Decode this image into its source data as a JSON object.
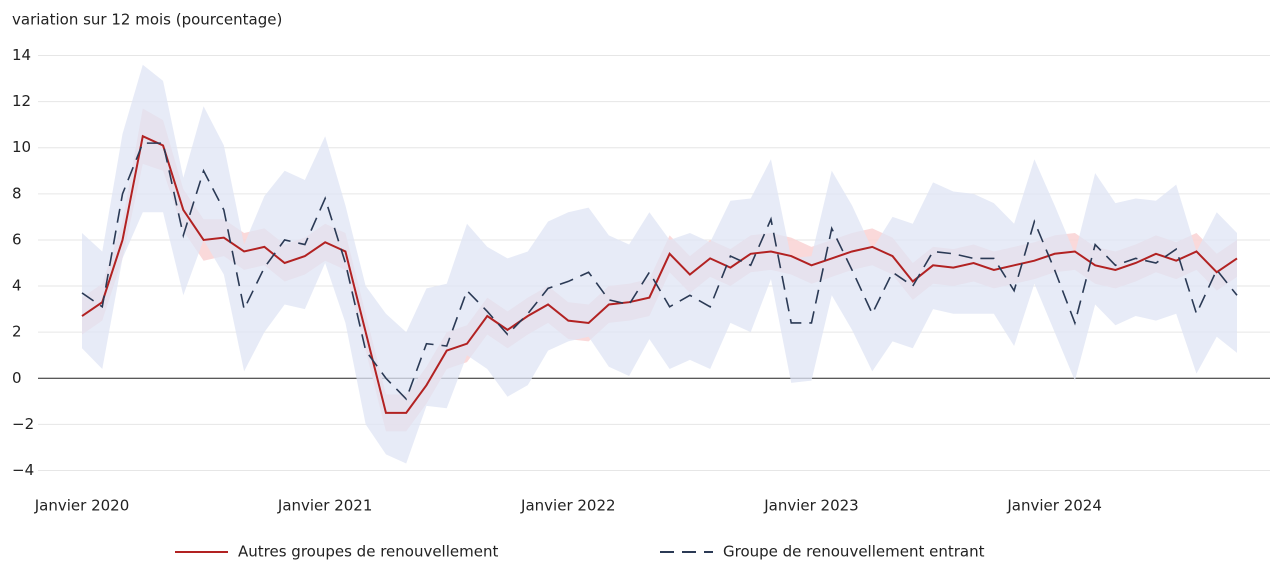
{
  "chart_data": {
    "type": "line",
    "y_label": "variation sur 12 mois (pourcentage)",
    "x": [
      "2020-01",
      "2020-02",
      "2020-03",
      "2020-04",
      "2020-05",
      "2020-06",
      "2020-07",
      "2020-08",
      "2020-09",
      "2020-10",
      "2020-11",
      "2020-12",
      "2021-01",
      "2021-02",
      "2021-03",
      "2021-04",
      "2021-05",
      "2021-06",
      "2021-07",
      "2021-08",
      "2021-09",
      "2021-10",
      "2021-11",
      "2021-12",
      "2022-01",
      "2022-02",
      "2022-03",
      "2022-04",
      "2022-05",
      "2022-06",
      "2022-07",
      "2022-08",
      "2022-09",
      "2022-10",
      "2022-11",
      "2022-12",
      "2023-01",
      "2023-02",
      "2023-03",
      "2023-04",
      "2023-05",
      "2023-06",
      "2023-07",
      "2023-08",
      "2023-09",
      "2023-10",
      "2023-11",
      "2023-12",
      "2024-01",
      "2024-02",
      "2024-03",
      "2024-04",
      "2024-05",
      "2024-06",
      "2024-07",
      "2024-08",
      "2024-09",
      "2024-10"
    ],
    "xticks": [
      {
        "value": "2020-01",
        "label": "Janvier 2020"
      },
      {
        "value": "2021-01",
        "label": "Janvier 2021"
      },
      {
        "value": "2022-01",
        "label": "Janvier 2022"
      },
      {
        "value": "2023-01",
        "label": "Janvier 2023"
      },
      {
        "value": "2024-01",
        "label": "Janvier 2024"
      }
    ],
    "ylim": [
      -4.5,
      14.5
    ],
    "yticks": [
      {
        "value": -4,
        "label": "−4"
      },
      {
        "value": -2,
        "label": "−2"
      },
      0,
      2,
      4,
      6,
      8,
      10,
      12,
      14
    ],
    "grid": true,
    "series": [
      {
        "name": "Autres groupes de renouvellement",
        "color": "#b22222",
        "dash": false,
        "band_color": "#f9d2d4",
        "values": [
          2.7,
          3.3,
          6.0,
          10.5,
          10.1,
          7.3,
          6.0,
          6.1,
          5.5,
          5.7,
          5.0,
          5.3,
          5.9,
          5.5,
          2.0,
          -1.5,
          -1.5,
          -0.3,
          1.2,
          1.5,
          2.7,
          2.1,
          2.7,
          3.2,
          2.5,
          2.4,
          3.2,
          3.3,
          3.5,
          5.4,
          4.5,
          5.2,
          4.8,
          5.4,
          5.5,
          5.3,
          4.9,
          5.2,
          5.5,
          5.7,
          5.3,
          4.2,
          4.9,
          4.8,
          5.0,
          4.7,
          4.9,
          5.1,
          5.4,
          5.5,
          4.9,
          4.7,
          5.0,
          5.4,
          5.1,
          5.5,
          4.6,
          5.2
        ],
        "upper": [
          3.5,
          4.1,
          6.8,
          11.7,
          11.2,
          8.2,
          6.9,
          6.9,
          6.3,
          6.5,
          5.8,
          6.1,
          6.7,
          6.3,
          2.8,
          -0.7,
          -0.7,
          0.5,
          2.0,
          2.3,
          3.5,
          2.9,
          3.5,
          4.0,
          3.3,
          3.2,
          4.0,
          4.1,
          4.3,
          6.2,
          5.3,
          6.0,
          5.6,
          6.2,
          6.3,
          6.1,
          5.7,
          6.0,
          6.3,
          6.5,
          6.1,
          5.0,
          5.7,
          5.6,
          5.8,
          5.5,
          5.7,
          5.9,
          6.2,
          6.3,
          5.7,
          5.5,
          5.8,
          6.2,
          5.9,
          6.3,
          5.4,
          6.0
        ],
        "lower": [
          1.9,
          2.5,
          5.2,
          9.3,
          9.0,
          6.4,
          5.1,
          5.3,
          4.7,
          4.9,
          4.2,
          4.5,
          5.1,
          4.7,
          1.2,
          -2.3,
          -2.3,
          -1.1,
          0.4,
          0.7,
          1.9,
          1.3,
          1.9,
          2.4,
          1.7,
          1.6,
          2.4,
          2.5,
          2.7,
          4.6,
          3.7,
          4.4,
          4.0,
          4.6,
          4.7,
          4.5,
          4.1,
          4.4,
          4.7,
          4.9,
          4.5,
          3.4,
          4.1,
          4.0,
          4.2,
          3.9,
          4.1,
          4.3,
          4.6,
          4.7,
          4.1,
          3.9,
          4.2,
          4.6,
          4.3,
          4.7,
          3.8,
          4.4
        ]
      },
      {
        "name": "Groupe de renouvellement entrant",
        "color": "#2b3a55",
        "dash": true,
        "band_color": "#dfe4f4",
        "values": [
          3.7,
          3.1,
          8.0,
          10.2,
          10.2,
          6.2,
          9.0,
          7.3,
          3.0,
          4.8,
          6.0,
          5.8,
          7.8,
          5.0,
          1.2,
          0.0,
          -0.9,
          1.5,
          1.4,
          3.8,
          2.9,
          1.9,
          2.8,
          3.9,
          4.2,
          4.6,
          3.4,
          3.2,
          4.6,
          3.1,
          3.6,
          3.1,
          5.3,
          4.9,
          6.9,
          2.4,
          2.4,
          6.5,
          4.7,
          2.8,
          4.6,
          4.0,
          5.5,
          5.4,
          5.2,
          5.2,
          3.8,
          6.8,
          4.7,
          2.4,
          5.8,
          4.9,
          5.2,
          5.0,
          5.6,
          2.8,
          4.7,
          3.6
        ],
        "upper": [
          6.3,
          5.5,
          10.6,
          13.6,
          12.9,
          8.7,
          11.8,
          10.1,
          5.8,
          7.9,
          9.0,
          8.6,
          10.5,
          7.5,
          4.0,
          2.8,
          2.0,
          3.9,
          4.1,
          6.7,
          5.7,
          5.2,
          5.5,
          6.8,
          7.2,
          7.4,
          6.2,
          5.8,
          7.2,
          6.0,
          6.3,
          5.9,
          7.7,
          7.8,
          9.5,
          5.2,
          5.3,
          9.0,
          7.5,
          5.6,
          7.0,
          6.7,
          8.5,
          8.1,
          8.0,
          7.6,
          6.7,
          9.5,
          7.5,
          5.4,
          8.9,
          7.6,
          7.8,
          7.7,
          8.4,
          5.5,
          7.2,
          6.3
        ],
        "lower": [
          1.3,
          0.4,
          5.2,
          7.2,
          7.2,
          3.6,
          6.0,
          4.5,
          0.3,
          2.0,
          3.2,
          3.0,
          5.0,
          2.4,
          -2.0,
          -3.3,
          -3.7,
          -1.2,
          -1.3,
          1.0,
          0.4,
          -0.8,
          -0.3,
          1.2,
          1.6,
          1.8,
          0.5,
          0.1,
          1.7,
          0.4,
          0.8,
          0.4,
          2.4,
          2.0,
          4.3,
          -0.2,
          -0.1,
          3.6,
          2.1,
          0.3,
          1.6,
          1.3,
          3.0,
          2.8,
          2.8,
          2.8,
          1.4,
          4.1,
          2.0,
          -0.1,
          3.2,
          2.3,
          2.7,
          2.5,
          2.8,
          0.2,
          1.8,
          1.1
        ]
      }
    ]
  }
}
